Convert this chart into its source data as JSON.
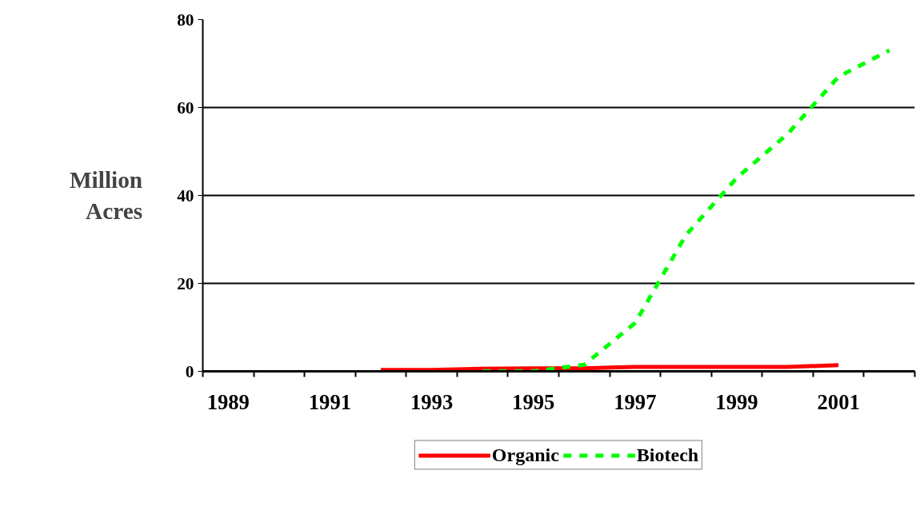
{
  "chart_data": {
    "type": "line",
    "ylabel": "Million Acres",
    "categories": [
      "1989",
      null,
      "1991",
      null,
      "1993",
      null,
      "1995",
      null,
      "1997",
      null,
      "1999",
      null,
      "2001",
      null
    ],
    "series": [
      {
        "name": "Organic",
        "color": "#ff0000",
        "line_style": "solid",
        "values": [
          null,
          null,
          null,
          0.3,
          0.3,
          0.6,
          0.7,
          0.7,
          1,
          1,
          1,
          1,
          1.4,
          null
        ]
      },
      {
        "name": "Biotech",
        "color": "#00ff00",
        "line_style": "dashed",
        "values": [
          null,
          null,
          null,
          null,
          null,
          0,
          0,
          1.5,
          11,
          31,
          44,
          54,
          67,
          73
        ]
      }
    ],
    "ylim": [
      0,
      80
    ],
    "yticks": [
      0,
      20,
      40,
      60,
      80
    ],
    "grid": "y",
    "legend": "bottom"
  }
}
